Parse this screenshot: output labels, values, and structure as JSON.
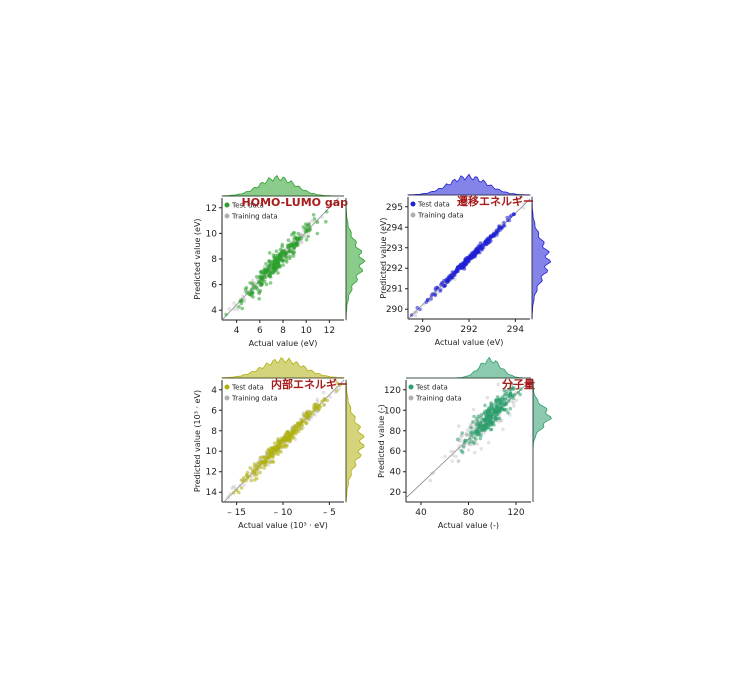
{
  "chart_data": [
    {
      "type": "scatter",
      "title": "HOMO-LUMO gap",
      "xlabel": "Actual value (eV)",
      "ylabel": "Predicted value (eV)",
      "xlim": [
        2.5,
        13.5
      ],
      "ylim": [
        2.5,
        13.0
      ],
      "xticks": [
        "4",
        "6",
        "8",
        "10",
        "12"
      ],
      "yticks": [
        "4",
        "6",
        "8",
        "10",
        "12"
      ],
      "legend": [
        "Test data",
        "Training data"
      ],
      "legend_position": "top-left",
      "colors": {
        "test": "#2ca02c",
        "train": "#b0b0b0"
      },
      "diagonal": true,
      "series": [
        {
          "name": "Test data",
          "center": [
            7.5,
            7.5
          ],
          "spread": 1.6,
          "scatter": 0.45
        },
        {
          "name": "Training data",
          "center": [
            7.5,
            7.5
          ],
          "spread": 1.9,
          "scatter": 0.3
        }
      ]
    },
    {
      "type": "scatter",
      "title": "遷移エネルギー",
      "xlabel": "Actual value (eV)",
      "ylabel": "Predicted value (eV)",
      "xlim": [
        289.5,
        295.8
      ],
      "ylim": [
        289.5,
        295.9
      ],
      "xticks": [
        "290",
        "292",
        "294"
      ],
      "yticks": [
        "290",
        "291",
        "292",
        "293",
        "294",
        "295"
      ],
      "legend": [
        "Test data",
        "Training data"
      ],
      "legend_position": "top-left",
      "colors": {
        "test": "#1f1fd6",
        "train": "#b0b0b0"
      },
      "diagonal": true,
      "series": [
        {
          "name": "Test data",
          "center": [
            292.6,
            292.6
          ],
          "spread": 1.0,
          "scatter": 0.1
        },
        {
          "name": "Training data",
          "center": [
            292.6,
            292.6
          ],
          "spread": 1.2,
          "scatter": 0.08
        }
      ]
    },
    {
      "type": "scatter",
      "title": "内部エネルギー",
      "xlabel": "Actual value (10³ · eV)",
      "ylabel": "Predicted value (10³ · eV)",
      "xlim": [
        -16,
        -3
      ],
      "ylim": [
        -15.8,
        -3.0
      ],
      "yaxis_inverted_labels": true,
      "xticks": [
        "– 15",
        "– 10",
        "– 5"
      ],
      "yticks": [
        "4",
        "6",
        "8",
        "10",
        "12",
        "14"
      ],
      "legend": [
        "Test data",
        "Training data"
      ],
      "legend_position": "top-left",
      "colors": {
        "test": "#b0b010",
        "train": "#b0b0b0"
      },
      "diagonal": true,
      "series": [
        {
          "name": "Test data",
          "center": [
            -9.5,
            -9.5
          ],
          "spread": 2.2,
          "scatter": 0.35
        },
        {
          "name": "Training data",
          "center": [
            -9.5,
            -9.5
          ],
          "spread": 2.6,
          "scatter": 0.4
        }
      ]
    },
    {
      "type": "scatter",
      "title": "分子量",
      "xlabel": "Actual value (-)",
      "ylabel": "Predicted value (-)",
      "xlim": [
        22,
        138
      ],
      "ylim": [
        18,
        138
      ],
      "xticks": [
        "40",
        "80",
        "120"
      ],
      "yticks": [
        "20",
        "40",
        "60",
        "80",
        "100",
        "120"
      ],
      "legend": [
        "Test data",
        "Training data"
      ],
      "legend_position": "top-left",
      "colors": {
        "test": "#2e9e6e",
        "train": "#b0b0b0"
      },
      "diagonal": true,
      "series": [
        {
          "name": "Test data",
          "center": [
            100,
            102
          ],
          "spread": 10,
          "scatter": 6
        },
        {
          "name": "Training data",
          "center": [
            92,
            92
          ],
          "spread": 18,
          "scatter": 9
        }
      ]
    }
  ]
}
